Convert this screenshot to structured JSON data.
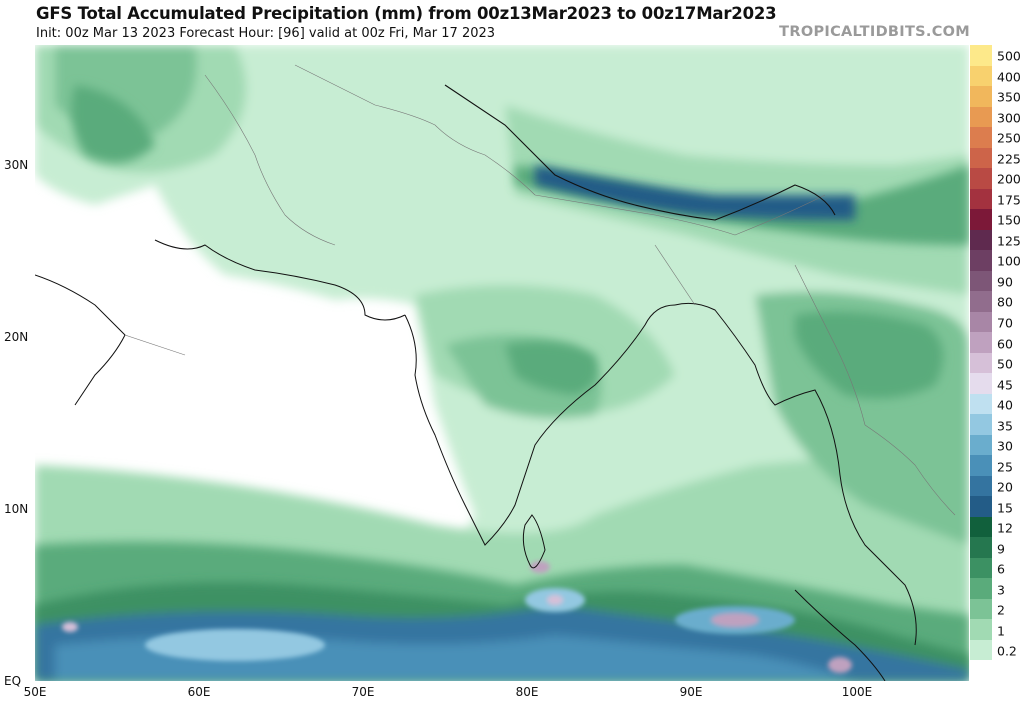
{
  "header": {
    "title": "GFS Total Accumulated Precipitation (mm) from 00z13Mar2023 to 00z17Mar2023",
    "subtitle": "Init: 00z Mar 13 2023   Forecast Hour: [96]   valid at 00z Fri, Mar 17 2023",
    "brand": "TROPICALTIDBITS.COM"
  },
  "map": {
    "lon_range": [
      50,
      107
    ],
    "lat_range": [
      0,
      37
    ],
    "lat_labels": [
      "30N",
      "20N",
      "10N",
      "EQ"
    ],
    "lon_labels": [
      "50E",
      "60E",
      "70E",
      "80E",
      "90E",
      "100E"
    ],
    "lat_ticks": [
      30,
      20,
      10,
      0
    ],
    "lon_ticks": [
      50,
      60,
      70,
      80,
      90,
      100
    ]
  },
  "colorbar": {
    "levels": [
      {
        "label": "500",
        "color": "#fde98a"
      },
      {
        "label": "400",
        "color": "#f8d16e"
      },
      {
        "label": "350",
        "color": "#f1b75c"
      },
      {
        "label": "300",
        "color": "#e89a52"
      },
      {
        "label": "250",
        "color": "#dc7d4e"
      },
      {
        "label": "225",
        "color": "#cd6449"
      },
      {
        "label": "200",
        "color": "#b94a44"
      },
      {
        "label": "175",
        "color": "#a3323f"
      },
      {
        "label": "150",
        "color": "#7c1838"
      },
      {
        "label": "125",
        "color": "#5f2a4f"
      },
      {
        "label": "100",
        "color": "#6d3f63"
      },
      {
        "label": "90",
        "color": "#7d5677"
      },
      {
        "label": "80",
        "color": "#916d8d"
      },
      {
        "label": "70",
        "color": "#a886a6"
      },
      {
        "label": "60",
        "color": "#bfa1bf"
      },
      {
        "label": "50",
        "color": "#d6c0d8"
      },
      {
        "label": "45",
        "color": "#e5dced"
      },
      {
        "label": "40",
        "color": "#bfe0f0"
      },
      {
        "label": "35",
        "color": "#93c8e1"
      },
      {
        "label": "30",
        "color": "#6aadcd"
      },
      {
        "label": "25",
        "color": "#4a90b8"
      },
      {
        "label": "20",
        "color": "#3474a0"
      },
      {
        "label": "15",
        "color": "#235c87"
      },
      {
        "label": "12",
        "color": "#11603c"
      },
      {
        "label": "9",
        "color": "#25774f"
      },
      {
        "label": "6",
        "color": "#3c9163"
      },
      {
        "label": "3",
        "color": "#5aab7b"
      },
      {
        "label": "2",
        "color": "#7cc396"
      },
      {
        "label": "1",
        "color": "#a1dab3"
      },
      {
        "label": "0.2",
        "color": "#c7edd3"
      }
    ],
    "bottom_color": "#ffffff"
  }
}
